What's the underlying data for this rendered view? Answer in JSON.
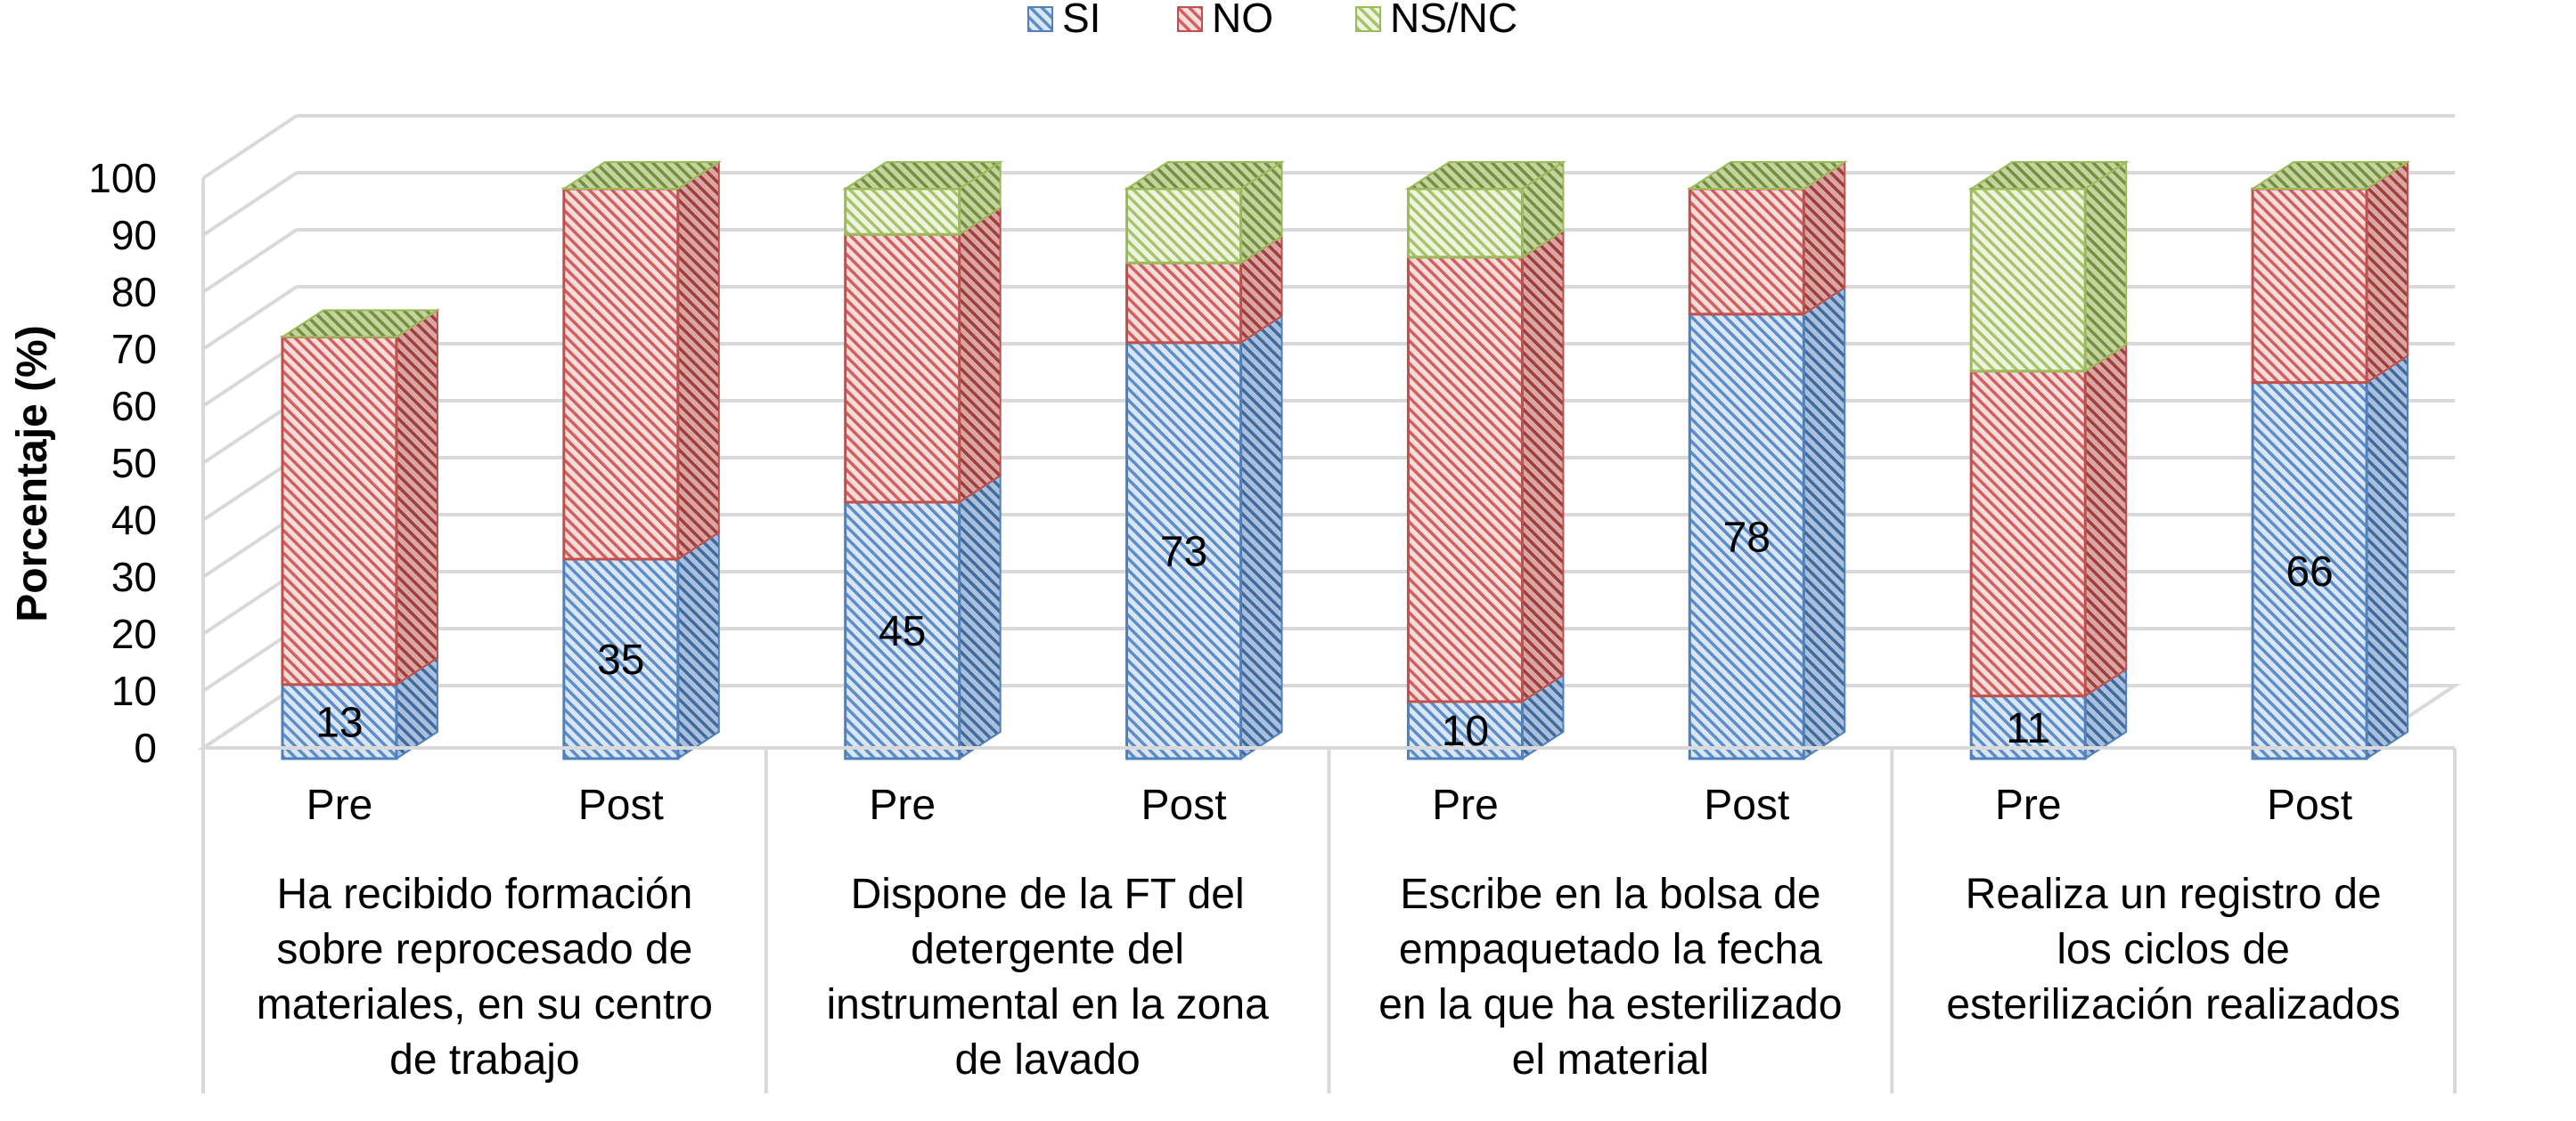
{
  "chart_data": {
    "type": "bar",
    "stacked": true,
    "three_d": true,
    "ylabel": "Porcentaje (%)",
    "ylim": [
      0,
      100
    ],
    "yticks": [
      0,
      10,
      20,
      30,
      40,
      50,
      60,
      70,
      80,
      90,
      100
    ],
    "grid": true,
    "legend_position": "top-center",
    "groups": [
      {
        "label": [
          "Ha recibido formación",
          "sobre reprocesado de",
          "materiales, en su centro",
          "de trabajo"
        ],
        "sub": [
          "Pre",
          "Post"
        ]
      },
      {
        "label": [
          "Dispone de la FT del",
          "detergente del",
          "instrumental en la zona",
          "de lavado"
        ],
        "sub": [
          "Pre",
          "Post"
        ]
      },
      {
        "label": [
          "Escribe en la bolsa de",
          "empaquetado la fecha",
          "en la que ha esterilizado",
          "el material"
        ],
        "sub": [
          "Pre",
          "Post"
        ]
      },
      {
        "label": [
          "Realiza un registro de",
          "los ciclos de",
          "esterilización realizados"
        ],
        "sub": [
          "Pre",
          "Post"
        ]
      }
    ],
    "series": [
      {
        "name": "SI",
        "color": "#4f81bd",
        "values": [
          13,
          35,
          45,
          73,
          10,
          78,
          11,
          66
        ],
        "labels": [
          "13",
          "35",
          "45",
          "73",
          "10",
          "78",
          "11",
          "66"
        ]
      },
      {
        "name": "NO",
        "color": "#c0504d",
        "values": [
          61,
          65,
          47,
          14,
          78,
          22,
          57,
          34
        ]
      },
      {
        "name": "NS/NC",
        "color": "#9bbb59",
        "values": [
          0,
          0,
          8,
          13,
          12,
          0,
          32,
          0
        ]
      }
    ]
  }
}
